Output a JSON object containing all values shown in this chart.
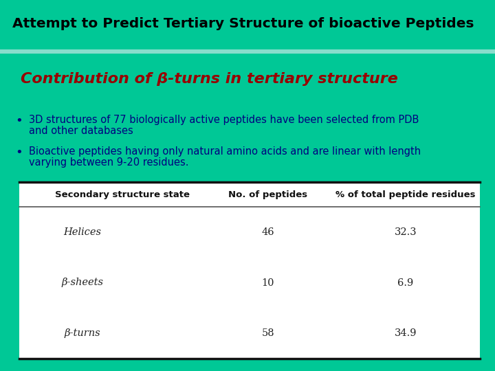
{
  "title": "Attempt to Predict Tertiary Structure of bioactive Peptides",
  "subtitle": "Contribution of β-turns in tertiary structure",
  "bg_color": "#00C896",
  "title_color": "#000000",
  "subtitle_color": "#990000",
  "bullet_color": "#000080",
  "separator_color": "#88DDCC",
  "bullet1_line1": "3D structures of 77 biologically active peptides have been selected from PDB",
  "bullet1_line2": "and other databases",
  "bullet2_line1": "Bioactive peptides having only natural amino acids and are linear with length",
  "bullet2_line2": "varying between 9-20 residues.",
  "table_header": [
    "Secondary structure state",
    "No. of peptides",
    "% of total peptide residues"
  ],
  "table_rows": [
    [
      "Helices",
      "46",
      "32.3"
    ],
    [
      "β-sheets",
      "10",
      "6.9"
    ],
    [
      "β-turns",
      "58",
      "34.9"
    ]
  ],
  "table_header_color": "#111111",
  "table_text_color": "#222222"
}
